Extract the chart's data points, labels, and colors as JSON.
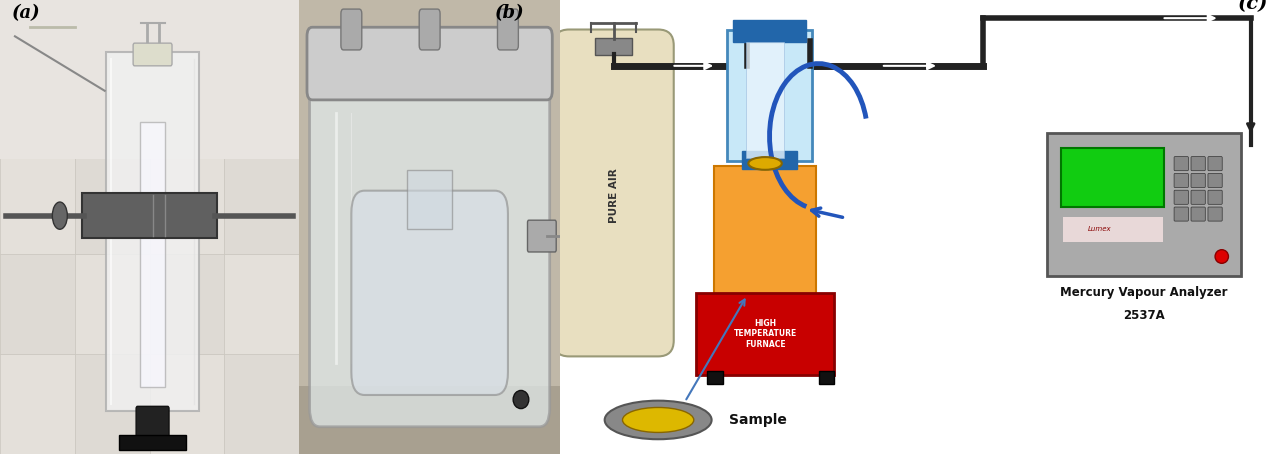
{
  "bg_color": "#ffffff",
  "label_a": "(a)",
  "label_b": "(b)",
  "label_c": "(c)",
  "pure_air_text": "PURE AIR",
  "furnace_text": "HIGH\nTEMPERATURE\nFURNACE",
  "sample_text": "Sample",
  "analyzer_line1": "Mercury Vapour Analyzer",
  "analyzer_line2": "2537A",
  "furnace_color": "#c80000",
  "orange_block_color": "#f5a030",
  "cylinder_fill": "#e8dfc0",
  "cylinder_edge": "#999977",
  "pipe_color": "#222222",
  "tube_fill": "#c8e8f8",
  "tube_edge": "#4488bb",
  "tube_dark": "#2266aa",
  "analyzer_fill": "#aaaaaa",
  "analyzer_edge": "#555555",
  "screen_color": "#11cc11",
  "blue_arrow": "#2255bb",
  "sample_yellow": "#ddb800",
  "sample_gray": "#777777",
  "furnace_text_color": "#ffffff",
  "label_fontsize": 13,
  "panel_a_photo_colors": [
    "#d8d4cc",
    "#c8c0b4",
    "#b8b4ac",
    "#e0dcd4",
    "#f0ece8"
  ],
  "panel_b_photo_colors": [
    "#c0b8a8",
    "#d0c8b8",
    "#b8b0a0",
    "#e0d8c8",
    "#a8a098"
  ],
  "photo_noise_seed": 42
}
